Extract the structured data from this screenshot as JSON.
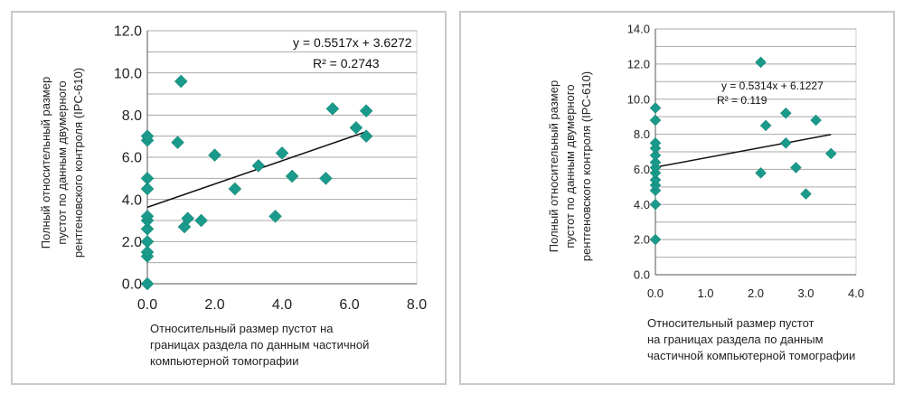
{
  "chart_data": [
    {
      "type": "scatter",
      "xlim": [
        0,
        8
      ],
      "ylim": [
        0,
        12
      ],
      "xticks": [
        0,
        2,
        4,
        6,
        8
      ],
      "xtick_labels": [
        "0.0",
        "2.0",
        "4.0",
        "6.0",
        "8.0"
      ],
      "yticks": [
        0,
        2,
        4,
        6,
        8,
        10,
        12
      ],
      "ytick_labels": [
        "0.0",
        "2.0",
        "4.0",
        "6.0",
        "8.0",
        "10.0",
        "12.0"
      ],
      "grid": "horizontal",
      "xlabel_lines": [
        "Относительный размер пустот на",
        "границах раздела по данным частичной",
        "компьютерной томографии"
      ],
      "ylabel_lines": [
        "Полный относительный размер",
        "пустот по данным двумерного",
        "рентгеновского контроля (IPC-610)"
      ],
      "equation": "y = 0.5517x + 3.6272",
      "r_squared": "R² = 0.2743",
      "trendline": {
        "slope": 0.5517,
        "intercept": 3.6272,
        "x_range": [
          0,
          6.5
        ]
      },
      "marker_color": "#1a9a8a",
      "points": [
        {
          "x": 0,
          "y": 0
        },
        {
          "x": 0,
          "y": 1.3
        },
        {
          "x": 0,
          "y": 1.5
        },
        {
          "x": 0,
          "y": 2.0
        },
        {
          "x": 0,
          "y": 2.6
        },
        {
          "x": 0,
          "y": 3.0
        },
        {
          "x": 0,
          "y": 3.2
        },
        {
          "x": 0,
          "y": 4.5
        },
        {
          "x": 0,
          "y": 5.0
        },
        {
          "x": 0,
          "y": 6.8
        },
        {
          "x": 0,
          "y": 7.0
        },
        {
          "x": 0.9,
          "y": 6.7
        },
        {
          "x": 1.0,
          "y": 9.6
        },
        {
          "x": 1.1,
          "y": 2.7
        },
        {
          "x": 1.2,
          "y": 3.1
        },
        {
          "x": 1.6,
          "y": 3.0
        },
        {
          "x": 2.0,
          "y": 6.1
        },
        {
          "x": 2.6,
          "y": 4.5
        },
        {
          "x": 3.3,
          "y": 5.6
        },
        {
          "x": 3.8,
          "y": 3.2
        },
        {
          "x": 4.0,
          "y": 6.2
        },
        {
          "x": 4.3,
          "y": 5.1
        },
        {
          "x": 5.3,
          "y": 5.0
        },
        {
          "x": 5.5,
          "y": 8.3
        },
        {
          "x": 6.2,
          "y": 7.4
        },
        {
          "x": 6.5,
          "y": 8.2
        },
        {
          "x": 6.5,
          "y": 7.0
        }
      ]
    },
    {
      "type": "scatter",
      "xlim": [
        0,
        4
      ],
      "ylim": [
        0,
        14
      ],
      "xticks": [
        0,
        1,
        2,
        3,
        4
      ],
      "xtick_labels": [
        "0.0",
        "1.0",
        "2.0",
        "3.0",
        "4.0"
      ],
      "yticks": [
        0,
        2,
        4,
        6,
        8,
        10,
        12,
        14
      ],
      "ytick_labels": [
        "0.0",
        "2.0",
        "4.0",
        "6.0",
        "8.0",
        "10.0",
        "12.0",
        "14.0"
      ],
      "grid": "horizontal",
      "xlabel_lines": [
        "Относительный размер пустот",
        "на границах раздела по данным",
        "частичной компьютерной томографии"
      ],
      "ylabel_lines": [
        "Полный относительный размер",
        "пустот по данным двумерного",
        "рентгеновского контроля (IPC-610)"
      ],
      "equation": "y = 0.5314x + 6.1227",
      "r_squared": "R² = 0.119",
      "trendline": {
        "slope": 0.5314,
        "intercept": 6.1227,
        "x_range": [
          0,
          3.5
        ]
      },
      "marker_color": "#1a9a8a",
      "points": [
        {
          "x": 0,
          "y": 2.0
        },
        {
          "x": 0,
          "y": 4.0
        },
        {
          "x": 0,
          "y": 4.8
        },
        {
          "x": 0,
          "y": 5.1
        },
        {
          "x": 0,
          "y": 5.4
        },
        {
          "x": 0,
          "y": 5.8
        },
        {
          "x": 0,
          "y": 6.1
        },
        {
          "x": 0,
          "y": 6.4
        },
        {
          "x": 0,
          "y": 6.8
        },
        {
          "x": 0,
          "y": 7.2
        },
        {
          "x": 0,
          "y": 7.5
        },
        {
          "x": 0,
          "y": 8.8
        },
        {
          "x": 0,
          "y": 9.5
        },
        {
          "x": 2.1,
          "y": 12.1
        },
        {
          "x": 2.1,
          "y": 5.8
        },
        {
          "x": 2.2,
          "y": 8.5
        },
        {
          "x": 2.6,
          "y": 9.2
        },
        {
          "x": 2.6,
          "y": 7.5
        },
        {
          "x": 2.8,
          "y": 6.1
        },
        {
          "x": 3.0,
          "y": 4.6
        },
        {
          "x": 3.2,
          "y": 8.8
        },
        {
          "x": 3.5,
          "y": 6.9
        }
      ]
    }
  ]
}
